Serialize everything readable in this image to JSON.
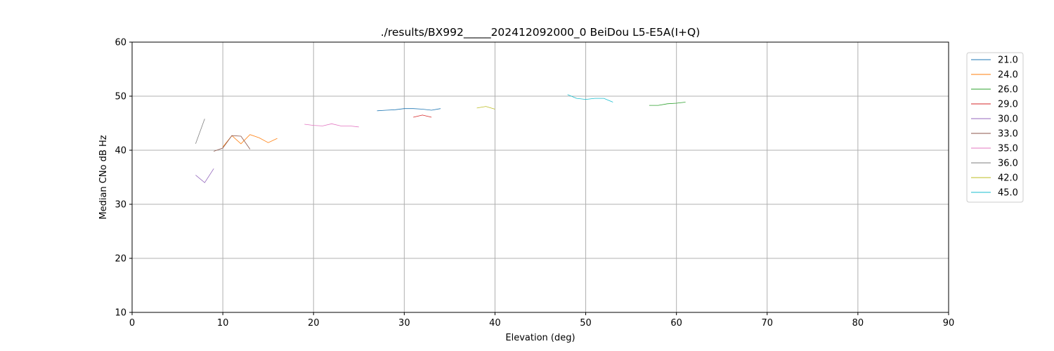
{
  "chart_data": {
    "type": "line",
    "title": "./results/BX992_____202412092000_0 BeiDou L5-E5A(I+Q)",
    "xlabel": "Elevation (deg)",
    "ylabel": "Median CNo dB Hz",
    "xlim": [
      0,
      90
    ],
    "ylim": [
      10,
      60
    ],
    "xticks": [
      0,
      10,
      20,
      30,
      40,
      50,
      60,
      70,
      80,
      90
    ],
    "yticks": [
      10,
      20,
      30,
      40,
      50,
      60
    ],
    "grid": true,
    "legend_position": "right, outside plot area",
    "series": [
      {
        "name": "21.0",
        "color": "#1f77b4",
        "x": [
          27,
          28,
          29,
          30,
          31,
          32,
          33,
          34
        ],
        "y": [
          47.3,
          47.4,
          47.5,
          47.7,
          47.7,
          47.6,
          47.4,
          47.7
        ]
      },
      {
        "name": "24.0",
        "color": "#ff7f0e",
        "x": [
          10,
          11,
          12,
          13,
          14,
          15,
          16
        ],
        "y": [
          40.6,
          42.7,
          41.2,
          42.9,
          42.3,
          41.4,
          42.2
        ]
      },
      {
        "name": "26.0",
        "color": "#2ca02c",
        "x": [
          57,
          58,
          59,
          60,
          61
        ],
        "y": [
          48.3,
          48.3,
          48.6,
          48.7,
          48.9
        ]
      },
      {
        "name": "29.0",
        "color": "#d62728",
        "x": [
          31,
          32,
          33
        ],
        "y": [
          46.1,
          46.5,
          46.1
        ]
      },
      {
        "name": "30.0",
        "color": "#9467bd",
        "x": [
          7,
          8,
          9
        ],
        "y": [
          35.4,
          34.0,
          36.6
        ]
      },
      {
        "name": "33.0",
        "color": "#8c564b",
        "x": [
          9,
          10,
          11,
          12,
          13
        ],
        "y": [
          39.8,
          40.4,
          42.7,
          42.6,
          40.2
        ]
      },
      {
        "name": "35.0",
        "color": "#e377c2",
        "x": [
          19,
          20,
          21,
          22,
          23,
          24,
          25
        ],
        "y": [
          44.8,
          44.6,
          44.5,
          44.9,
          44.5,
          44.5,
          44.3
        ]
      },
      {
        "name": "36.0",
        "color": "#7f7f7f",
        "x": [
          7,
          8
        ],
        "y": [
          41.2,
          45.8
        ]
      },
      {
        "name": "42.0",
        "color": "#bcbd22",
        "x": [
          38,
          39,
          40
        ],
        "y": [
          47.8,
          48.1,
          47.6
        ]
      },
      {
        "name": "45.0",
        "color": "#17becf",
        "x": [
          48,
          49,
          50,
          51,
          52,
          53
        ],
        "y": [
          50.3,
          49.6,
          49.4,
          49.6,
          49.6,
          48.9
        ]
      }
    ]
  }
}
